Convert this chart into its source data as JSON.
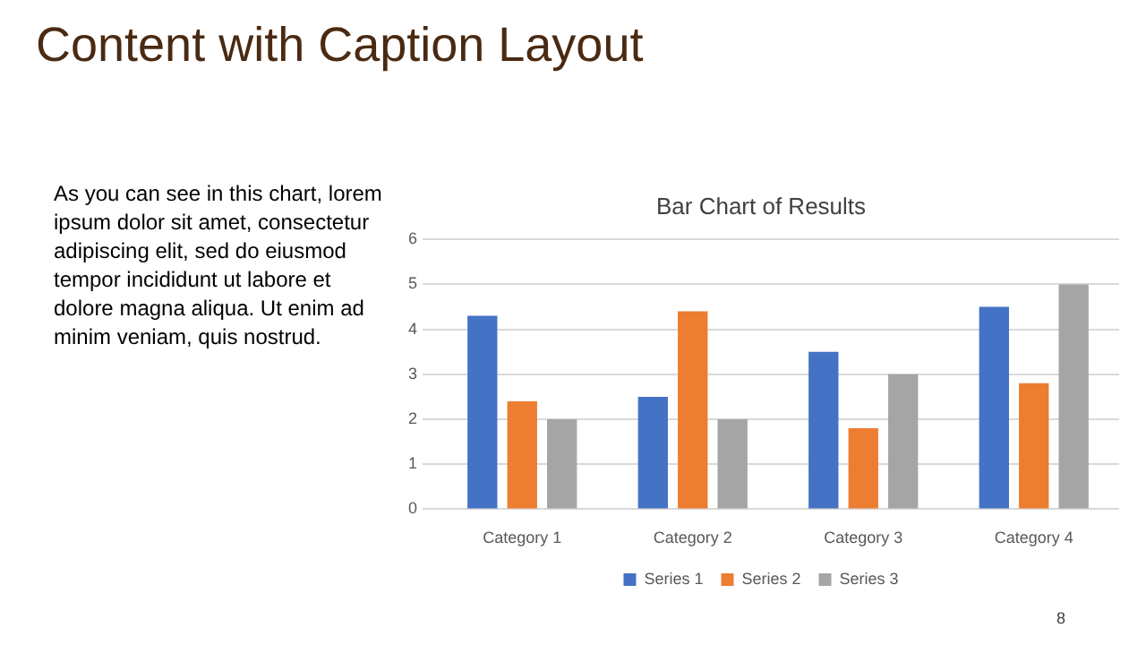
{
  "chart_data": {
    "type": "bar",
    "title": "Bar Chart of Results",
    "annotations": [
      "Content with Caption Layout",
      "As you can see in this chart, lorem ipsum dolor sit amet, consectetur adipiscing elit, sed do eiusmod tempor incididunt ut labore et dolore magna aliqua. Ut enim ad minim veniam, quis nostrud.",
      "8"
    ],
    "categories": [
      "Category 1",
      "Category 2",
      "Category 3",
      "Category 4"
    ],
    "series": [
      {
        "name": "Series 1",
        "color": "#4472c4",
        "values": [
          4.3,
          2.5,
          3.5,
          4.5
        ]
      },
      {
        "name": "Series 2",
        "color": "#ed7d31",
        "values": [
          2.4,
          4.4,
          1.8,
          2.8
        ]
      },
      {
        "name": "Series 3",
        "color": "#a5a5a5",
        "values": [
          2,
          2,
          3,
          5
        ]
      }
    ],
    "ylim": [
      0,
      6
    ],
    "yticks": [
      0,
      1,
      2,
      3,
      4,
      5,
      6
    ],
    "grid": "y",
    "legend": "bottom"
  }
}
